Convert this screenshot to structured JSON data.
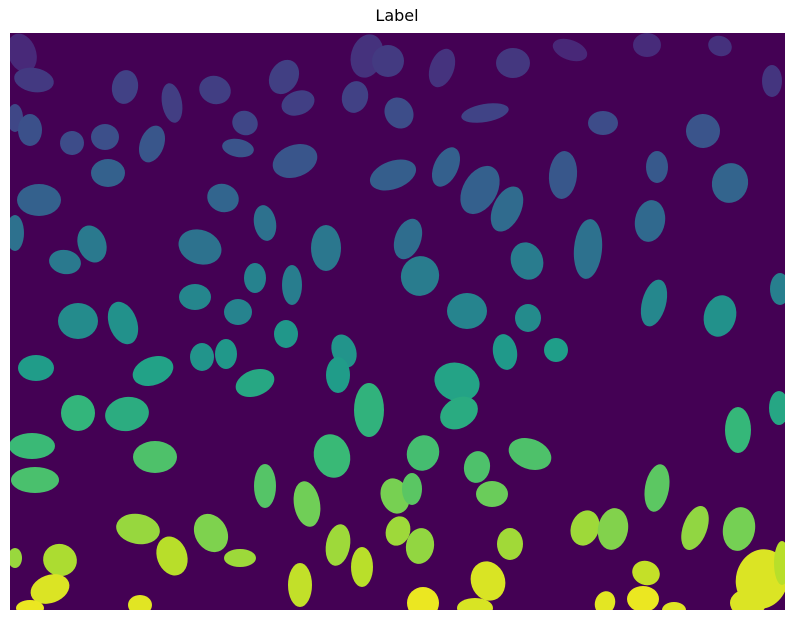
{
  "figure": {
    "title": "Label"
  },
  "image": {
    "description_kind": "segmentation label map of cell nuclei rendered with viridis colormap",
    "colormap": "viridis",
    "background_color": "#440154"
  }
}
